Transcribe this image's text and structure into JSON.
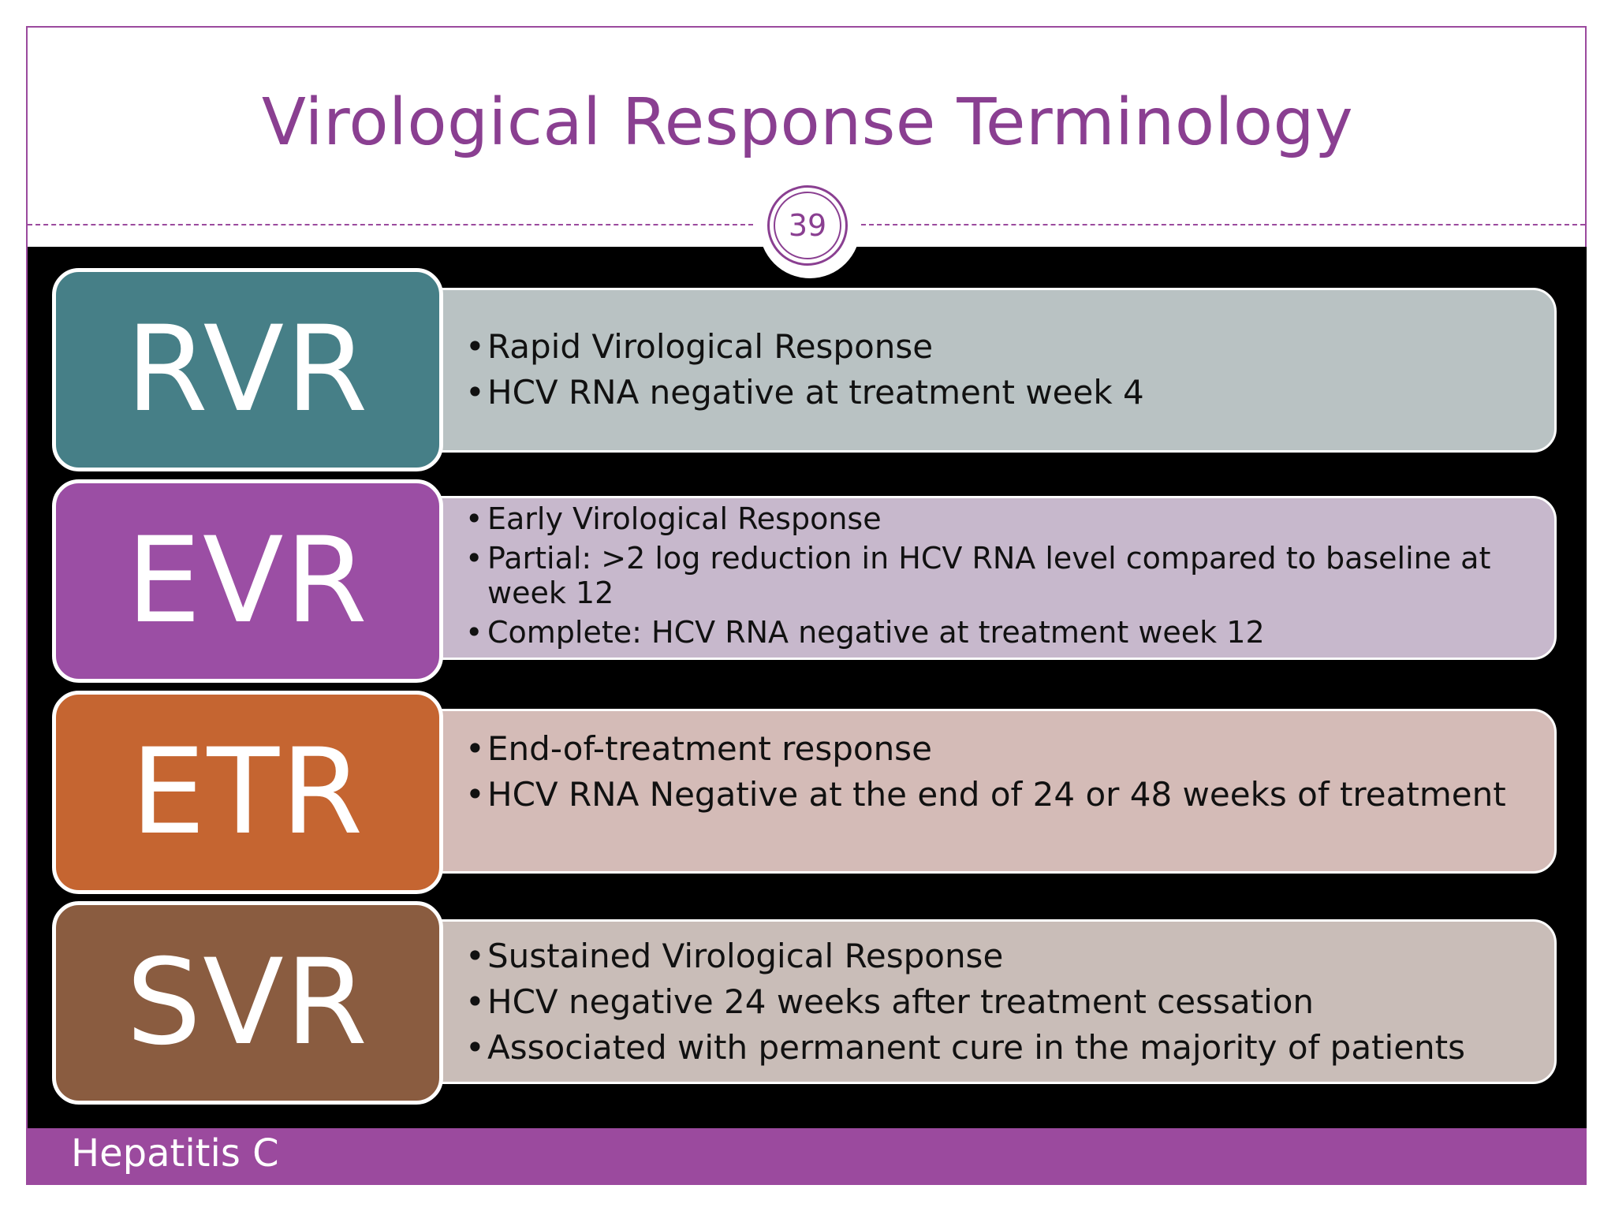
{
  "slide": {
    "title": "Virological Response Terminology",
    "page_number": "39",
    "footer": "Hepatitis C"
  },
  "rows": [
    {
      "key": "RVR",
      "color": "#467f87",
      "panel_color": "#b9c2c3",
      "bullets": [
        "Rapid Virological Response",
        "HCV RNA negative at treatment week 4"
      ]
    },
    {
      "key": "EVR",
      "color": "#9b4ea4",
      "panel_color": "#c7b8cc",
      "bullets": [
        "Early Virological Response",
        "Partial: >2 log reduction in HCV RNA level compared to baseline at week 12",
        "Complete: HCV RNA negative at treatment week 12"
      ]
    },
    {
      "key": "ETR",
      "color": "#c56531",
      "panel_color": "#d4bbb7",
      "bullets": [
        "End-of-treatment response",
        "HCV RNA Negative at the end of 24 or 48 weeks of treatment"
      ]
    },
    {
      "key": "SVR",
      "color": "#8a5c40",
      "panel_color": "#c9bdb8",
      "bullets": [
        "Sustained Virological Response",
        "HCV negative 24 weeks after treatment cessation",
        "Associated with permanent cure in the majority of patients"
      ]
    }
  ]
}
